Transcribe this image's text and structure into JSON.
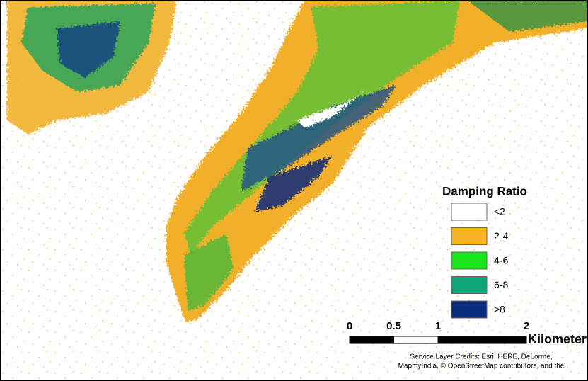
{
  "legend": {
    "title": "Damping Ratio",
    "items": [
      {
        "label": "<2",
        "color": "#ffffff"
      },
      {
        "label": "2-4",
        "color": "#f7b21f"
      },
      {
        "label": "4-6",
        "color": "#19e619"
      },
      {
        "label": "6-8",
        "color": "#0fa37a"
      },
      {
        "label": ">8",
        "color": "#0b2a7a"
      }
    ]
  },
  "scale_bar": {
    "ticks": [
      0,
      0.5,
      1,
      2
    ],
    "unit": "Kilometers"
  },
  "credits": [
    "Service Layer Credits: Esri, HERE, DeLorme,",
    "MapmyIndia, © OpenStreetMap contributors, and the"
  ]
}
